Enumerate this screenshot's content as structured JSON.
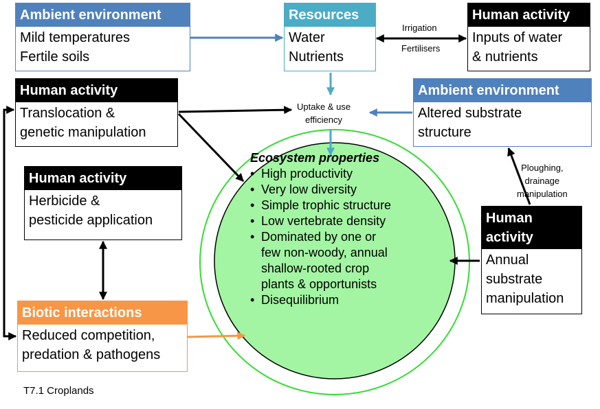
{
  "boxes": {
    "ambient1": {
      "header": "Ambient environment",
      "lines": [
        "Mild temperatures",
        "Fertile soils"
      ]
    },
    "resources": {
      "header": "Resources",
      "lines": [
        "Water",
        "Nutrients"
      ]
    },
    "human1": {
      "header": "Human activity",
      "lines": [
        "Inputs of water",
        "& nutrients"
      ]
    },
    "human2": {
      "header": "Human activity",
      "lines": [
        "Translocation &",
        "genetic manipulation"
      ]
    },
    "ambient2": {
      "header": "Ambient environment",
      "lines": [
        "Altered substrate",
        "structure"
      ]
    },
    "human3": {
      "header": "Human activity",
      "lines": [
        "Herbicide &",
        "pesticide application"
      ]
    },
    "biotic": {
      "header": "Biotic interactions",
      "lines": [
        "Reduced competition,",
        "predation & pathogens"
      ]
    },
    "human4": {
      "header_lines": [
        "Human",
        "activity"
      ],
      "lines": [
        "Annual",
        "substrate",
        "manipulation"
      ]
    }
  },
  "labels": {
    "irrigation": "Irrigation",
    "fertilisers": "Fertilisers",
    "uptake": [
      "Uptake & use",
      "efficiency"
    ],
    "ploughing": [
      "Ploughing,",
      "drainage",
      "manipulation"
    ]
  },
  "ecosystem": {
    "title": "Ecosystem properties",
    "items": [
      [
        "High productivity"
      ],
      [
        "Very low diversity"
      ],
      [
        "Simple trophic structure"
      ],
      [
        "Low vertebrate density"
      ],
      [
        "Dominated by one or",
        "few non-woody, annual",
        "shallow-rooted crop",
        "plants & opportunists"
      ],
      [
        "Disequilibrium"
      ]
    ]
  },
  "caption": "T7.1 Croplands",
  "colors": {
    "blue": "#4f81bd",
    "teal": "#4bacc6",
    "orange": "#f79646",
    "green_fill": "#a3f5a3",
    "green_line": "#33dd33"
  }
}
